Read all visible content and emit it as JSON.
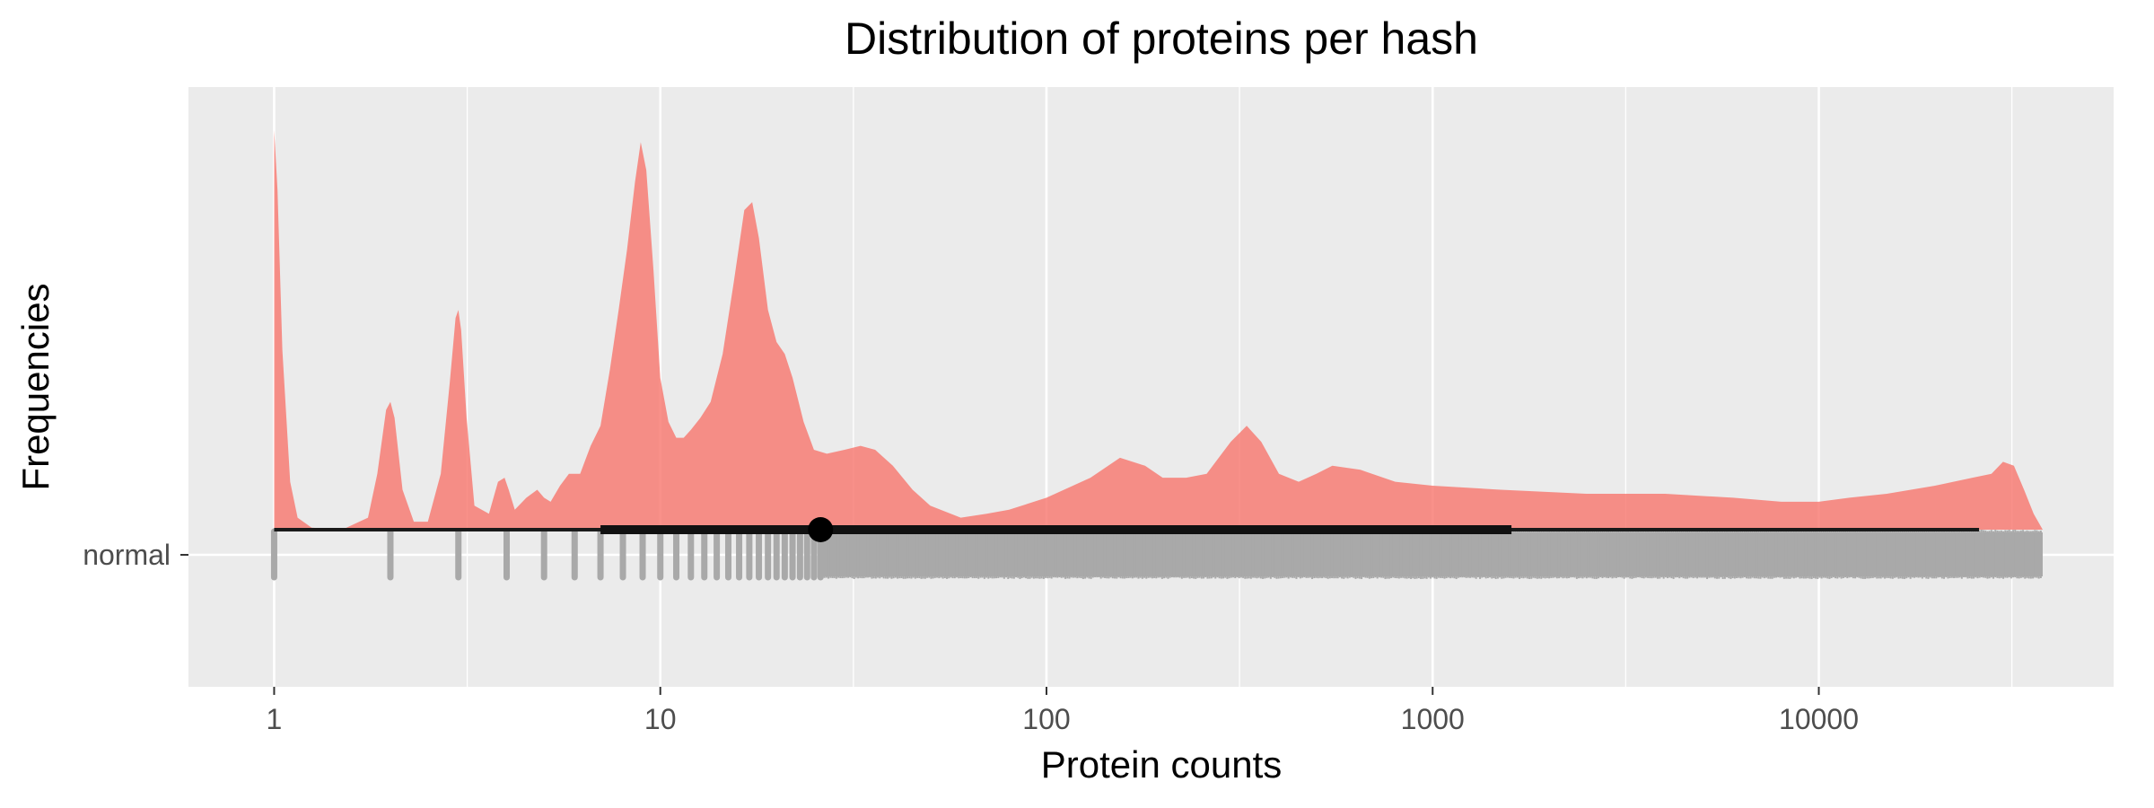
{
  "chart_data": {
    "type": "raincloud",
    "title": "Distribution of proteins per hash",
    "xlabel": "Protein counts",
    "ylabel": "Frequencies",
    "x_scale": "log10",
    "xlim": [
      0.6,
      58000
    ],
    "x_ticks": [
      {
        "value": 1,
        "label": "1"
      },
      {
        "value": 10,
        "label": "10"
      },
      {
        "value": 100,
        "label": "100"
      },
      {
        "value": 1000,
        "label": "1000"
      },
      {
        "value": 10000,
        "label": "10000"
      }
    ],
    "categories": [
      "normal"
    ],
    "density": {
      "group": "normal",
      "color": "#F8766D",
      "opacity": 0.8,
      "x": [
        1,
        1.02,
        1.05,
        1.1,
        1.15,
        1.25,
        1.5,
        1.75,
        1.85,
        1.95,
        2,
        2.05,
        2.15,
        2.3,
        2.5,
        2.7,
        2.85,
        2.95,
        3,
        3.05,
        3.15,
        3.3,
        3.6,
        3.8,
        3.95,
        4.05,
        4.2,
        4.5,
        4.8,
        5,
        5.2,
        5.5,
        5.8,
        6.2,
        6.6,
        7,
        7.4,
        7.8,
        8.2,
        8.6,
        8.9,
        9.2,
        9.6,
        10,
        10.5,
        11,
        11.5,
        12,
        12.7,
        13.5,
        14.5,
        15.5,
        16.5,
        17.3,
        18,
        19,
        20,
        21,
        22,
        23.5,
        25,
        27,
        30,
        33,
        36,
        40,
        45,
        50,
        60,
        70,
        80,
        100,
        130,
        155,
        180,
        200,
        230,
        260,
        300,
        330,
        360,
        400,
        450,
        500,
        550,
        650,
        800,
        1000,
        1500,
        2500,
        4000,
        6000,
        8000,
        10000,
        12000,
        15000,
        20000,
        25000,
        28000,
        30000,
        32000,
        34000,
        36000,
        38000
      ],
      "y": [
        1.0,
        0.85,
        0.45,
        0.12,
        0.03,
        0.005,
        0.0,
        0.03,
        0.14,
        0.3,
        0.32,
        0.28,
        0.1,
        0.02,
        0.02,
        0.14,
        0.37,
        0.53,
        0.55,
        0.5,
        0.28,
        0.06,
        0.04,
        0.12,
        0.13,
        0.1,
        0.05,
        0.08,
        0.1,
        0.08,
        0.07,
        0.11,
        0.14,
        0.14,
        0.21,
        0.26,
        0.4,
        0.55,
        0.7,
        0.87,
        0.97,
        0.9,
        0.65,
        0.38,
        0.27,
        0.23,
        0.23,
        0.25,
        0.28,
        0.32,
        0.44,
        0.62,
        0.8,
        0.82,
        0.73,
        0.55,
        0.47,
        0.44,
        0.38,
        0.27,
        0.2,
        0.19,
        0.2,
        0.21,
        0.2,
        0.16,
        0.1,
        0.06,
        0.03,
        0.04,
        0.05,
        0.08,
        0.13,
        0.18,
        0.16,
        0.13,
        0.13,
        0.14,
        0.22,
        0.26,
        0.22,
        0.14,
        0.12,
        0.14,
        0.16,
        0.15,
        0.12,
        0.11,
        0.1,
        0.09,
        0.09,
        0.08,
        0.07,
        0.07,
        0.08,
        0.09,
        0.11,
        0.13,
        0.14,
        0.17,
        0.16,
        0.1,
        0.04,
        0.0
      ]
    },
    "interval": {
      "group": "normal",
      "median": 26,
      "inner": [
        7,
        1600
      ],
      "outer": [
        1,
        26000
      ]
    },
    "rug": {
      "group": "normal",
      "color": "#A9A9A9",
      "discrete_values": [
        1,
        2,
        3,
        4,
        5,
        6,
        7,
        8,
        9,
        10,
        11,
        12,
        13,
        14,
        15,
        16,
        17,
        18,
        19,
        20,
        21,
        22,
        23,
        24,
        25,
        26
      ],
      "dense_range": [
        26,
        38000
      ]
    }
  }
}
